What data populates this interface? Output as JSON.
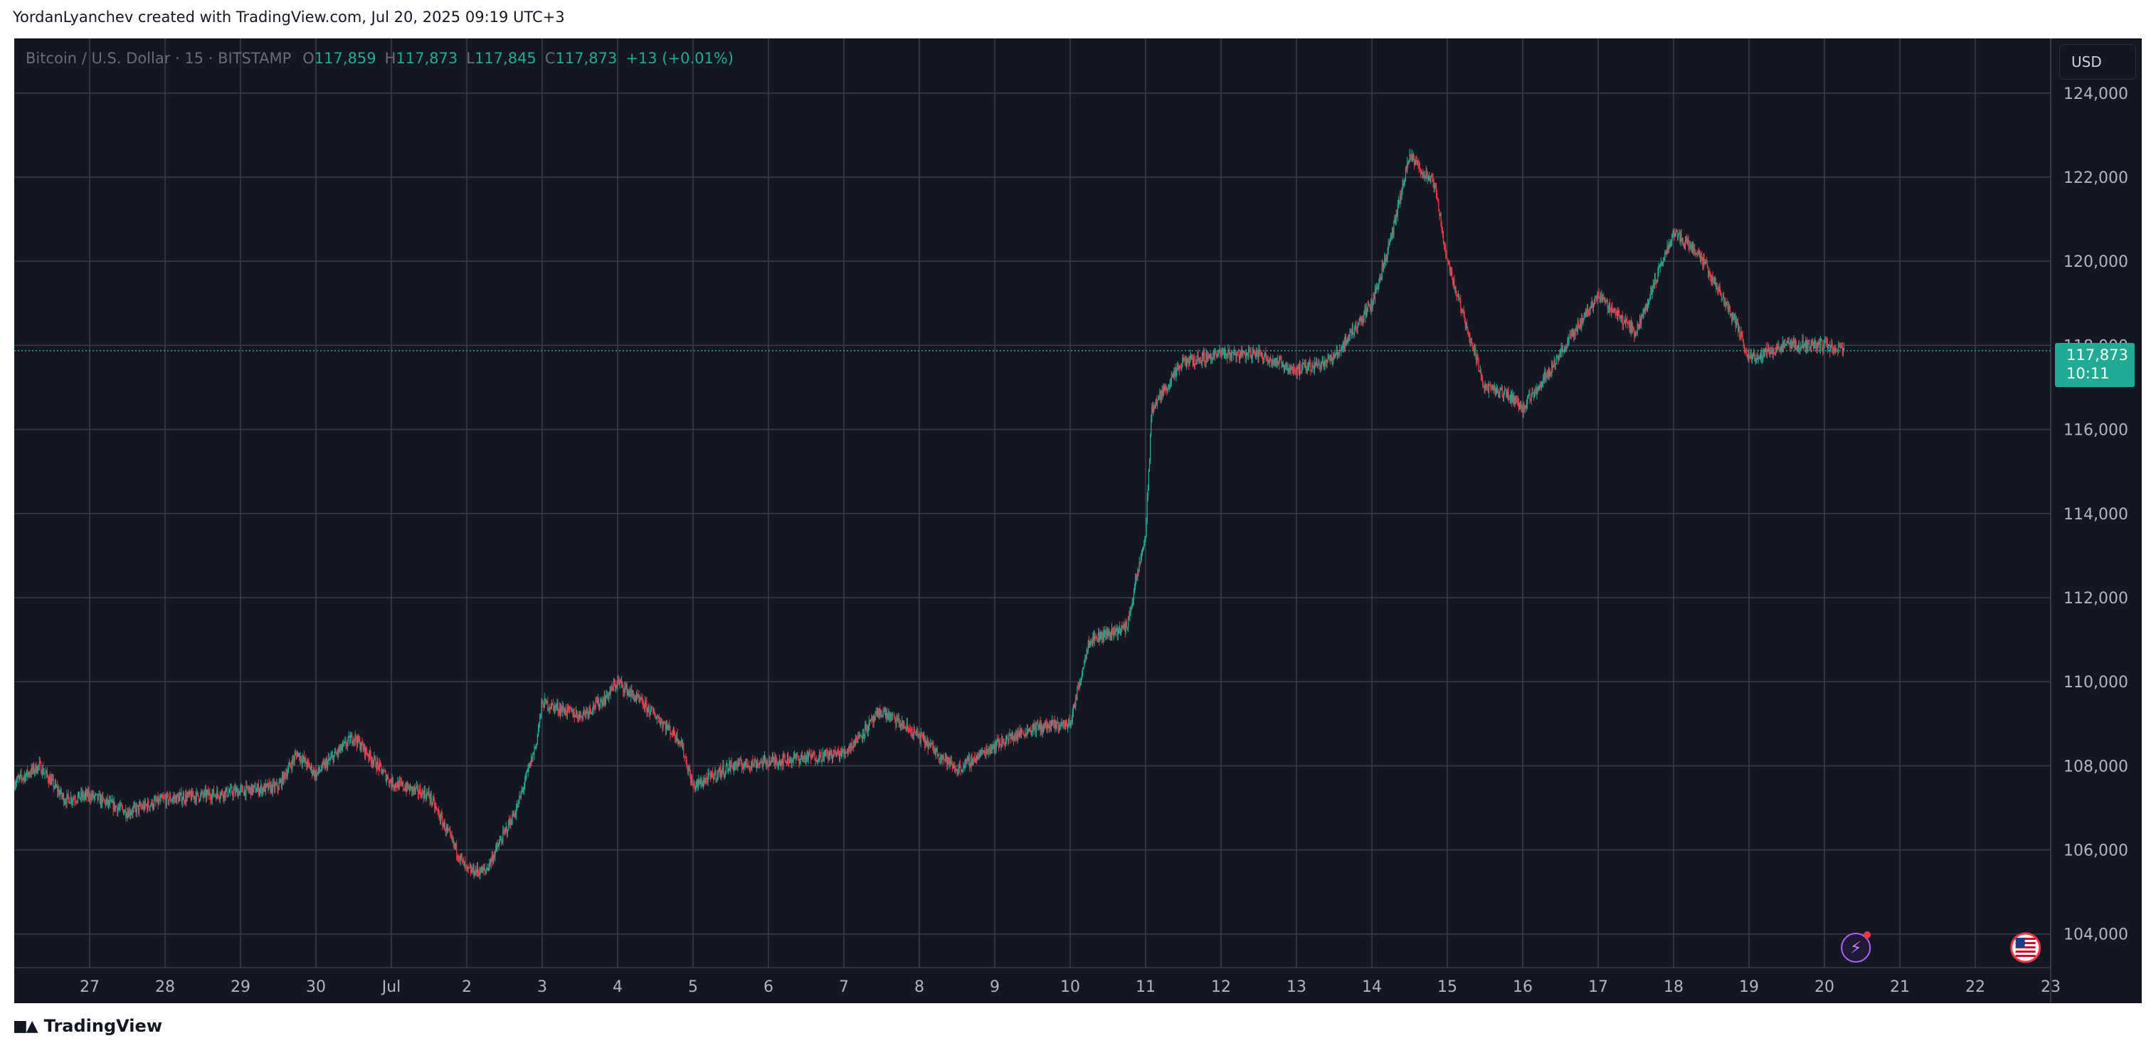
{
  "header": {
    "attribution": "YordanLyanchev created with TradingView.com, Jul 20, 2025 09:19 UTC+3"
  },
  "legend": {
    "symbol": "Bitcoin / U.S. Dollar · 15 · BITSTAMP",
    "open_label": "O",
    "open": "117,859",
    "high_label": "H",
    "high": "117,873",
    "low_label": "L",
    "low": "117,845",
    "close_label": "C",
    "close": "117,873",
    "change": "+13 (+0.01%)"
  },
  "currency": "USD",
  "price_tag": {
    "price": "117,873",
    "countdown": "10:11"
  },
  "footer": {
    "brand": "TradingView",
    "logo_icon": "tradingview-logo-icon"
  },
  "icons": {
    "event_icon": "lightning-event-icon",
    "flag_icon": "us-flag-icon"
  },
  "colors": {
    "background": "#131722",
    "grid": "#3a3e4a",
    "up": "#22ab94",
    "down": "#f23645",
    "axis_text": "#b2b5be",
    "price_line": "#22ab94"
  },
  "chart_data": {
    "type": "candlestick",
    "title": "Bitcoin / U.S. Dollar · 15 · BITSTAMP",
    "interval_minutes": 15,
    "y_axis": {
      "ticks": [
        104000,
        106000,
        108000,
        110000,
        112000,
        114000,
        116000,
        118000,
        120000,
        122000,
        124000
      ],
      "tick_labels": [
        "104,000",
        "106,000",
        "108,000",
        "110,000",
        "112,000",
        "114,000",
        "116,000",
        "118,000",
        "120,000",
        "122,000",
        "124,000"
      ],
      "range": [
        103200,
        125300
      ]
    },
    "x_axis": {
      "tick_labels": [
        "27",
        "28",
        "29",
        "30",
        "Jul",
        "2",
        "3",
        "4",
        "5",
        "6",
        "7",
        "8",
        "9",
        "10",
        "11",
        "12",
        "13",
        "14",
        "15",
        "16",
        "17",
        "18",
        "19",
        "20",
        "21",
        "22",
        "23"
      ],
      "tick_dates": [
        "2025-06-27",
        "2025-06-28",
        "2025-06-29",
        "2025-06-30",
        "2025-07-01",
        "2025-07-02",
        "2025-07-03",
        "2025-07-04",
        "2025-07-05",
        "2025-07-06",
        "2025-07-07",
        "2025-07-08",
        "2025-07-09",
        "2025-07-10",
        "2025-07-11",
        "2025-07-12",
        "2025-07-13",
        "2025-07-14",
        "2025-07-15",
        "2025-07-16",
        "2025-07-17",
        "2025-07-18",
        "2025-07-19",
        "2025-07-20",
        "2025-07-21",
        "2025-07-22",
        "2025-07-23"
      ],
      "range": [
        "2025-06-26",
        "2025-07-23"
      ]
    },
    "grid": true,
    "last_price": 117873,
    "series": [
      {
        "name": "Bitcoin / U.S. Dollar",
        "approx_close_path": [
          [
            "2025-06-26 00:00",
            107600
          ],
          [
            "2025-06-26 08:00",
            108000
          ],
          [
            "2025-06-26 16:00",
            107200
          ],
          [
            "2025-06-27 00:00",
            107300
          ],
          [
            "2025-06-27 12:00",
            106900
          ],
          [
            "2025-06-28 00:00",
            107200
          ],
          [
            "2025-06-28 12:00",
            107300
          ],
          [
            "2025-06-29 00:00",
            107400
          ],
          [
            "2025-06-29 12:00",
            107500
          ],
          [
            "2025-06-29 18:00",
            108300
          ],
          [
            "2025-06-30 00:00",
            107800
          ],
          [
            "2025-06-30 12:00",
            108700
          ],
          [
            "2025-07-01 00:00",
            107600
          ],
          [
            "2025-07-01 12:00",
            107300
          ],
          [
            "2025-07-02 00:00",
            105500
          ],
          [
            "2025-07-02 06:00",
            105500
          ],
          [
            "2025-07-02 16:00",
            107000
          ],
          [
            "2025-07-02 22:00",
            108500
          ],
          [
            "2025-07-03 00:00",
            109500
          ],
          [
            "2025-07-03 12:00",
            109200
          ],
          [
            "2025-07-03 20:00",
            109600
          ],
          [
            "2025-07-04 00:00",
            110000
          ],
          [
            "2025-07-04 12:00",
            109200
          ],
          [
            "2025-07-04 20:00",
            108600
          ],
          [
            "2025-07-05 00:00",
            107500
          ],
          [
            "2025-07-05 12:00",
            108000
          ],
          [
            "2025-07-06 00:00",
            108100
          ],
          [
            "2025-07-06 12:00",
            108200
          ],
          [
            "2025-07-07 00:00",
            108300
          ],
          [
            "2025-07-07 12:00",
            109300
          ],
          [
            "2025-07-08 00:00",
            108700
          ],
          [
            "2025-07-08 12:00",
            107900
          ],
          [
            "2025-07-09 00:00",
            108500
          ],
          [
            "2025-07-09 12:00",
            108900
          ],
          [
            "2025-07-10 00:00",
            109000
          ],
          [
            "2025-07-10 06:00",
            111000
          ],
          [
            "2025-07-10 18:00",
            111300
          ],
          [
            "2025-07-11 00:00",
            113500
          ],
          [
            "2025-07-11 02:00",
            116500
          ],
          [
            "2025-07-11 12:00",
            117600
          ],
          [
            "2025-07-12 00:00",
            117800
          ],
          [
            "2025-07-12 12:00",
            117800
          ],
          [
            "2025-07-13 00:00",
            117400
          ],
          [
            "2025-07-13 12:00",
            117700
          ],
          [
            "2025-07-14 00:00",
            119000
          ],
          [
            "2025-07-14 06:00",
            120500
          ],
          [
            "2025-07-14 12:00",
            122500
          ],
          [
            "2025-07-14 20:00",
            121800
          ],
          [
            "2025-07-15 00:00",
            120000
          ],
          [
            "2025-07-15 12:00",
            117000
          ],
          [
            "2025-07-15 20:00",
            116800
          ],
          [
            "2025-07-16 00:00",
            116500
          ],
          [
            "2025-07-16 12:00",
            117800
          ],
          [
            "2025-07-17 00:00",
            119200
          ],
          [
            "2025-07-17 12:00",
            118300
          ],
          [
            "2025-07-18 00:00",
            120700
          ],
          [
            "2025-07-18 08:00",
            120200
          ],
          [
            "2025-07-18 20:00",
            118500
          ],
          [
            "2025-07-19 00:00",
            117700
          ],
          [
            "2025-07-19 12:00",
            118000
          ],
          [
            "2025-07-20 00:00",
            118000
          ],
          [
            "2025-07-20 06:15",
            117873
          ]
        ]
      }
    ]
  }
}
